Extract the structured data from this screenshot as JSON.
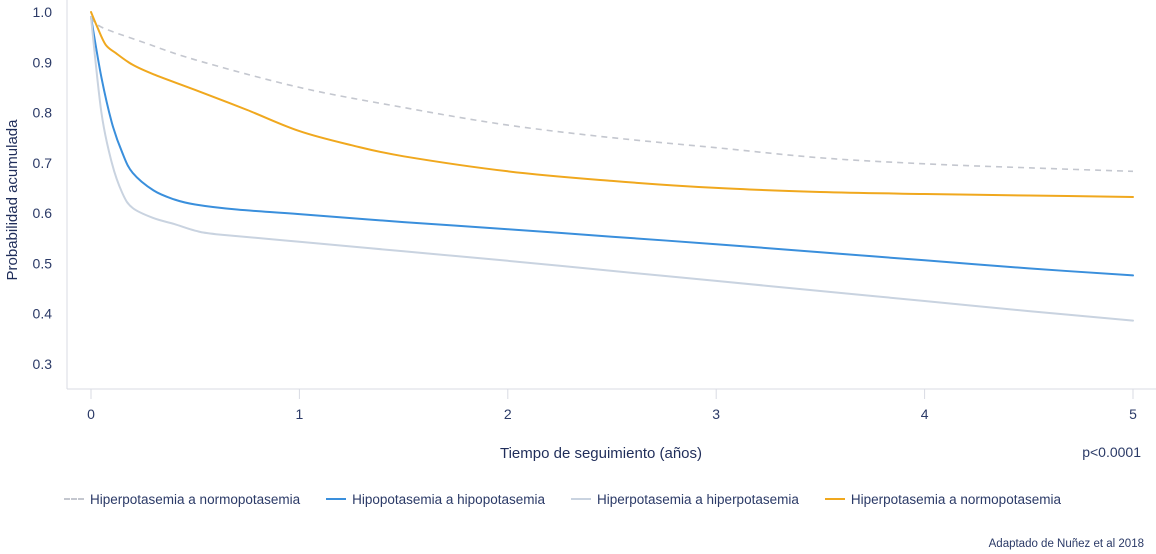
{
  "chart_data": {
    "type": "line",
    "xlabel": "Tiempo de seguimiento (años)",
    "ylabel": "Probabilidad acumulada",
    "xlim": [
      0,
      5
    ],
    "ylim": [
      0.25,
      1.0
    ],
    "x_ticks": [
      "0",
      "1",
      "2",
      "3",
      "4",
      "5"
    ],
    "y_ticks": [
      "1.0",
      "0.9",
      "0.8",
      "0.7",
      "0.6",
      "0.5",
      "0.4",
      "0.3"
    ],
    "grid": false,
    "legend_position": "bottom",
    "series": [
      {
        "name": "Hiperpotasemia a normopotasemia",
        "color": "#c4c7cf",
        "dashed": true,
        "points": [
          [
            0,
            0.99
          ],
          [
            0.05,
            0.97
          ],
          [
            0.25,
            0.94
          ],
          [
            0.5,
            0.905
          ],
          [
            1,
            0.85
          ],
          [
            1.5,
            0.81
          ],
          [
            2,
            0.775
          ],
          [
            2.5,
            0.75
          ],
          [
            3,
            0.73
          ],
          [
            3.5,
            0.71
          ],
          [
            4,
            0.698
          ],
          [
            4.5,
            0.69
          ],
          [
            5,
            0.683
          ]
        ]
      },
      {
        "name": "Hipopotasemia a hipopotasemia",
        "color": "#3a8fdc",
        "dashed": false,
        "points": [
          [
            0,
            0.99
          ],
          [
            0.05,
            0.87
          ],
          [
            0.1,
            0.78
          ],
          [
            0.15,
            0.72
          ],
          [
            0.2,
            0.68
          ],
          [
            0.3,
            0.645
          ],
          [
            0.4,
            0.627
          ],
          [
            0.5,
            0.617
          ],
          [
            0.7,
            0.607
          ],
          [
            1,
            0.598
          ],
          [
            1.5,
            0.582
          ],
          [
            2,
            0.568
          ],
          [
            2.5,
            0.553
          ],
          [
            3,
            0.538
          ],
          [
            3.5,
            0.522
          ],
          [
            4,
            0.506
          ],
          [
            4.5,
            0.49
          ],
          [
            5,
            0.476
          ]
        ]
      },
      {
        "name": "Hiperpotasemia a hiperpotasemia",
        "color": "#c9d3e0",
        "dashed": false,
        "points": [
          [
            0,
            0.99
          ],
          [
            0.05,
            0.8
          ],
          [
            0.1,
            0.7
          ],
          [
            0.15,
            0.64
          ],
          [
            0.2,
            0.61
          ],
          [
            0.3,
            0.59
          ],
          [
            0.4,
            0.578
          ],
          [
            0.5,
            0.565
          ],
          [
            0.6,
            0.558
          ],
          [
            1,
            0.543
          ],
          [
            1.5,
            0.524
          ],
          [
            2,
            0.505
          ],
          [
            2.5,
            0.485
          ],
          [
            3,
            0.465
          ],
          [
            3.5,
            0.445
          ],
          [
            4,
            0.425
          ],
          [
            4.5,
            0.405
          ],
          [
            5,
            0.386
          ]
        ]
      },
      {
        "name": "Hiperpotasemia a normopotasemia",
        "color": "#f0a81e",
        "dashed": false,
        "points": [
          [
            0,
            1.0
          ],
          [
            0.03,
            0.97
          ],
          [
            0.07,
            0.935
          ],
          [
            0.12,
            0.918
          ],
          [
            0.2,
            0.895
          ],
          [
            0.3,
            0.876
          ],
          [
            0.5,
            0.845
          ],
          [
            0.75,
            0.805
          ],
          [
            1,
            0.763
          ],
          [
            1.25,
            0.735
          ],
          [
            1.5,
            0.713
          ],
          [
            2,
            0.683
          ],
          [
            2.5,
            0.664
          ],
          [
            3,
            0.65
          ],
          [
            3.5,
            0.642
          ],
          [
            4,
            0.638
          ],
          [
            4.5,
            0.635
          ],
          [
            5,
            0.632
          ]
        ]
      }
    ]
  },
  "pvalue": "p<0.0001",
  "source": "Adaptado de Nuñez et al 2018"
}
